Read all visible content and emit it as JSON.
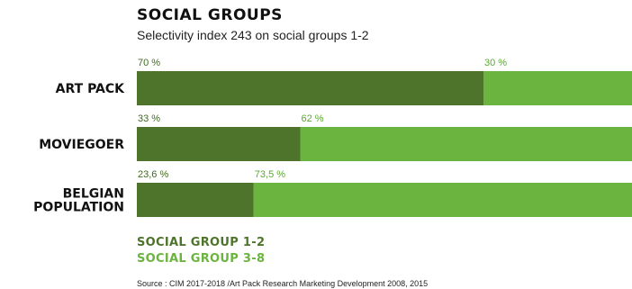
{
  "chart_data": {
    "type": "bar",
    "stacked": true,
    "orientation": "horizontal",
    "title": "SOCIAL GROUPS",
    "subtitle": "Selectivity index 243 on social groups 1-2",
    "categories": [
      "ART PACK",
      "MOVIEGOER",
      "BELGIAN POPULATION"
    ],
    "category_lines": [
      [
        "ART PACK"
      ],
      [
        "MOVIEGOER"
      ],
      [
        "BELGIAN",
        "POPULATION"
      ]
    ],
    "series": [
      {
        "name": "SOCIAL GROUP 1-2",
        "values": [
          70,
          33,
          23.6
        ],
        "labels": [
          "70 %",
          "33 %",
          "23,6 %"
        ],
        "color": "#4e742b",
        "label_color": "#3f6a1f"
      },
      {
        "name": "SOCIAL GROUP 3-8",
        "values": [
          30,
          62,
          73.5
        ],
        "labels": [
          "30 %",
          "62 %",
          "73,5 %"
        ],
        "color": "#6ab43f",
        "label_color": "#5aaa30"
      }
    ],
    "legend_position": "bottom-left",
    "grid": false
  },
  "source": "Source : CIM 2017-2018 /Art Pack Research Marketing Development 2008, 2015"
}
